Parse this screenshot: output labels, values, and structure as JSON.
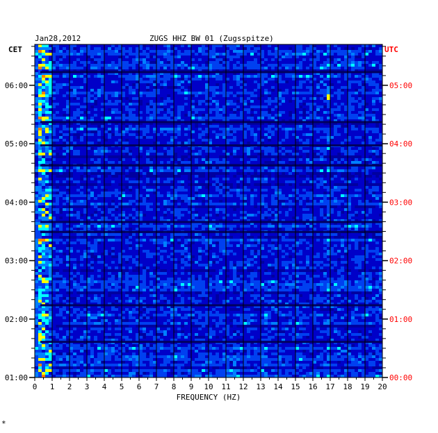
{
  "chart_data": {
    "type": "heatmap",
    "title": "ZUGS HHZ BW 01 (Zugsspitze)",
    "date": "Jan28,2012",
    "xlabel": "FREQUENCY (HZ)",
    "xlim": [
      0,
      20
    ],
    "x_ticks": [
      "0",
      "1",
      "2",
      "3",
      "4",
      "5",
      "6",
      "7",
      "8",
      "9",
      "10",
      "11",
      "12",
      "13",
      "14",
      "15",
      "16",
      "17",
      "18",
      "19",
      "20"
    ],
    "left_axis_label": "CET",
    "right_axis_label": "UTC",
    "y_ticks_left": [
      "06:00",
      "05:00",
      "04:00",
      "03:00",
      "02:00",
      "01:00"
    ],
    "y_ticks_right": [
      "05:00",
      "04:00",
      "03:00",
      "02:00",
      "01:00",
      "00:00"
    ],
    "time_range_cet": [
      "01:00",
      "06:42"
    ],
    "colors": {
      "background": "#0000a0",
      "low": "#0000c8",
      "mid": "#0080ff",
      "high": "#00ffff",
      "peak": "#ffff00",
      "max": "#ff0000",
      "utc_label": "#ff0000",
      "text": "#000000"
    },
    "notes_energy": "strongest energy below 1 Hz; weak line near 17 Hz"
  },
  "footer_mark": "*"
}
